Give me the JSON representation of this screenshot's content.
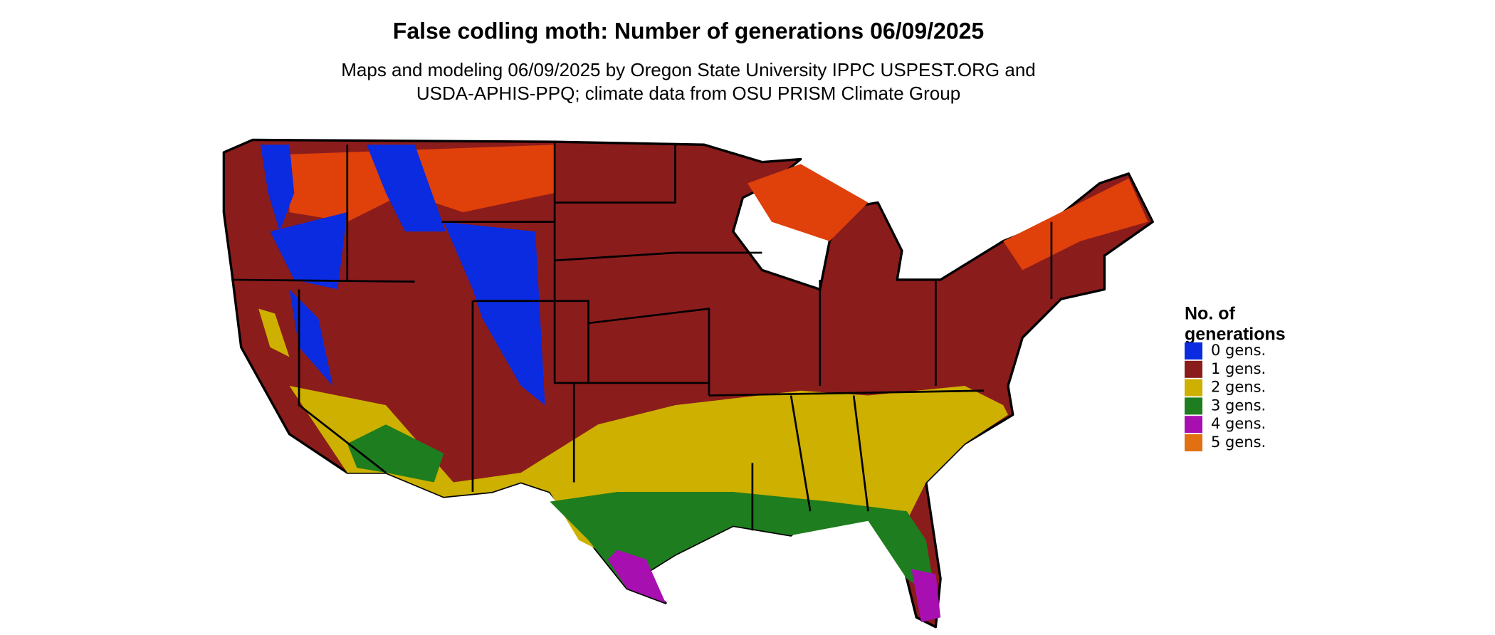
{
  "title": "False codling moth: Number of generations 06/09/2025",
  "subtitle": [
    "Maps and modeling 06/09/2025 by Oregon State University IPPC USPEST.ORG and",
    "USDA-APHIS-PPQ; climate data from OSU PRISM Climate Group"
  ],
  "legend": {
    "title": [
      "No. of",
      "generations"
    ],
    "items": [
      {
        "label": "0 gens.",
        "color": "#0a2be0"
      },
      {
        "label": "1 gens.",
        "color": "#8b1c1c"
      },
      {
        "label": "2 gens.",
        "color": "#cdb000"
      },
      {
        "label": "3 gens.",
        "color": "#1e7d1e"
      },
      {
        "label": "4 gens.",
        "color": "#a80fb0"
      },
      {
        "label": "5 gens.",
        "color": "#e07010"
      }
    ]
  }
}
